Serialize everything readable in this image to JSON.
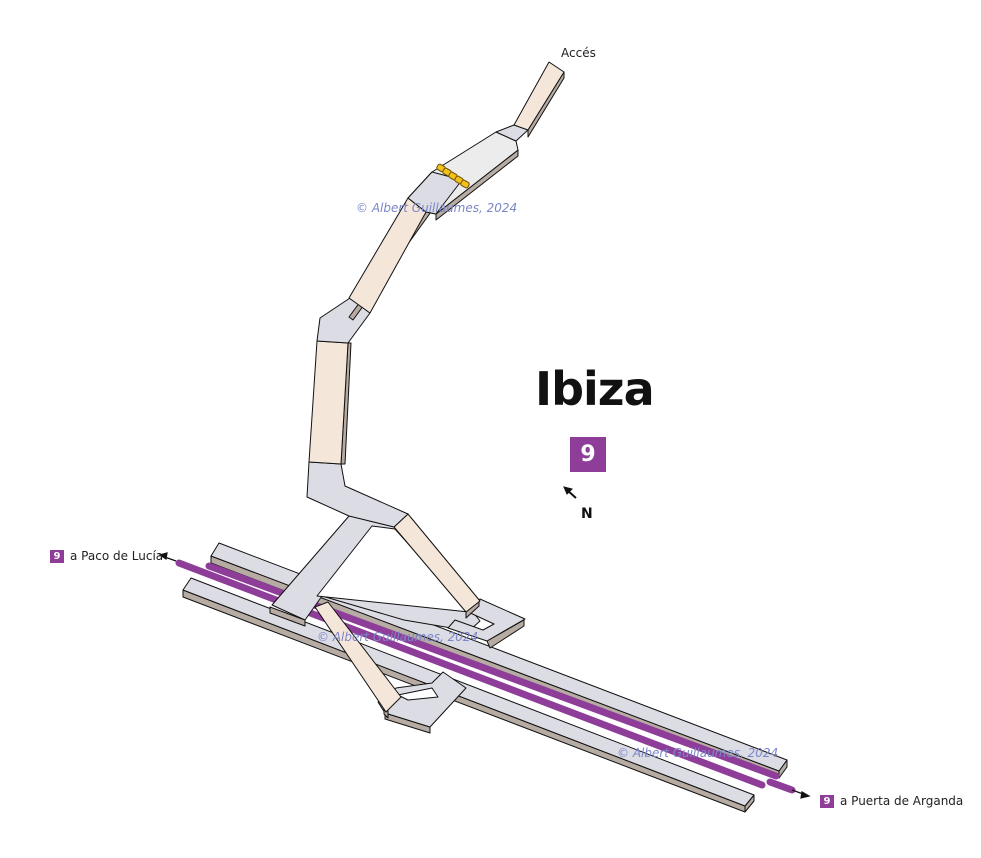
{
  "station": {
    "name": "Ibiza",
    "line": "9"
  },
  "colors": {
    "line": "#8e3e99",
    "corridor": "#dcdce4",
    "stair": "#f5e6da",
    "lobby": "#ececec",
    "side": "#b7aca3",
    "edge": "#111111",
    "gate": "#f2c21a",
    "watermark": "#7b86c9"
  },
  "labels": {
    "access": "Accés",
    "north": "N",
    "dir_left_line": "9",
    "dir_left": "a Paco de Lucía",
    "dir_right_line": "9",
    "dir_right": "a Puerta de Arganda"
  },
  "watermarks": [
    "© Albert Guillaumes, 2024",
    "© Albert Guillaumes, 2024",
    "© Albert Guillaumes, 2024"
  ]
}
